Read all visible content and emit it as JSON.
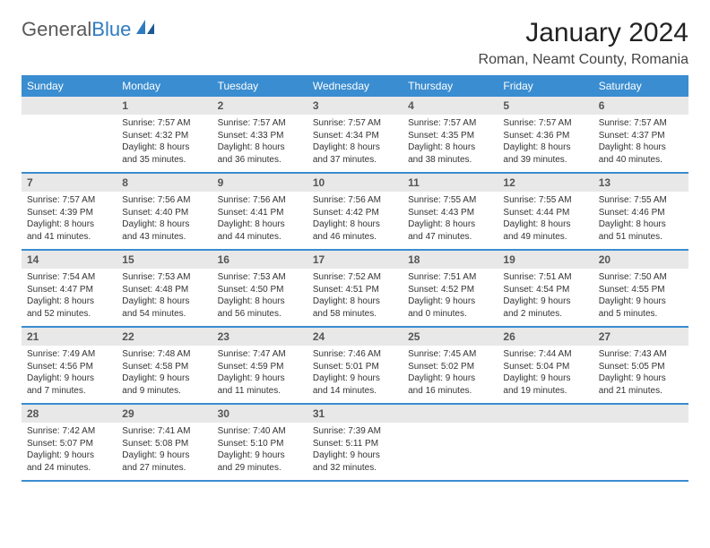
{
  "logo": {
    "text1": "General",
    "text2": "Blue"
  },
  "title": "January 2024",
  "location": "Roman, Neamt County, Romania",
  "colors": {
    "header_bg": "#3a8dd0",
    "header_text": "#ffffff",
    "daynum_bg": "#e8e8e8",
    "row_border": "#3a8dd0",
    "logo_gray": "#5a5a5a",
    "logo_blue": "#2f7bbf"
  },
  "weekdays": [
    "Sunday",
    "Monday",
    "Tuesday",
    "Wednesday",
    "Thursday",
    "Friday",
    "Saturday"
  ],
  "weeks": [
    [
      null,
      {
        "n": "1",
        "sr": "Sunrise: 7:57 AM",
        "ss": "Sunset: 4:32 PM",
        "dl": "Daylight: 8 hours and 35 minutes."
      },
      {
        "n": "2",
        "sr": "Sunrise: 7:57 AM",
        "ss": "Sunset: 4:33 PM",
        "dl": "Daylight: 8 hours and 36 minutes."
      },
      {
        "n": "3",
        "sr": "Sunrise: 7:57 AM",
        "ss": "Sunset: 4:34 PM",
        "dl": "Daylight: 8 hours and 37 minutes."
      },
      {
        "n": "4",
        "sr": "Sunrise: 7:57 AM",
        "ss": "Sunset: 4:35 PM",
        "dl": "Daylight: 8 hours and 38 minutes."
      },
      {
        "n": "5",
        "sr": "Sunrise: 7:57 AM",
        "ss": "Sunset: 4:36 PM",
        "dl": "Daylight: 8 hours and 39 minutes."
      },
      {
        "n": "6",
        "sr": "Sunrise: 7:57 AM",
        "ss": "Sunset: 4:37 PM",
        "dl": "Daylight: 8 hours and 40 minutes."
      }
    ],
    [
      {
        "n": "7",
        "sr": "Sunrise: 7:57 AM",
        "ss": "Sunset: 4:39 PM",
        "dl": "Daylight: 8 hours and 41 minutes."
      },
      {
        "n": "8",
        "sr": "Sunrise: 7:56 AM",
        "ss": "Sunset: 4:40 PM",
        "dl": "Daylight: 8 hours and 43 minutes."
      },
      {
        "n": "9",
        "sr": "Sunrise: 7:56 AM",
        "ss": "Sunset: 4:41 PM",
        "dl": "Daylight: 8 hours and 44 minutes."
      },
      {
        "n": "10",
        "sr": "Sunrise: 7:56 AM",
        "ss": "Sunset: 4:42 PM",
        "dl": "Daylight: 8 hours and 46 minutes."
      },
      {
        "n": "11",
        "sr": "Sunrise: 7:55 AM",
        "ss": "Sunset: 4:43 PM",
        "dl": "Daylight: 8 hours and 47 minutes."
      },
      {
        "n": "12",
        "sr": "Sunrise: 7:55 AM",
        "ss": "Sunset: 4:44 PM",
        "dl": "Daylight: 8 hours and 49 minutes."
      },
      {
        "n": "13",
        "sr": "Sunrise: 7:55 AM",
        "ss": "Sunset: 4:46 PM",
        "dl": "Daylight: 8 hours and 51 minutes."
      }
    ],
    [
      {
        "n": "14",
        "sr": "Sunrise: 7:54 AM",
        "ss": "Sunset: 4:47 PM",
        "dl": "Daylight: 8 hours and 52 minutes."
      },
      {
        "n": "15",
        "sr": "Sunrise: 7:53 AM",
        "ss": "Sunset: 4:48 PM",
        "dl": "Daylight: 8 hours and 54 minutes."
      },
      {
        "n": "16",
        "sr": "Sunrise: 7:53 AM",
        "ss": "Sunset: 4:50 PM",
        "dl": "Daylight: 8 hours and 56 minutes."
      },
      {
        "n": "17",
        "sr": "Sunrise: 7:52 AM",
        "ss": "Sunset: 4:51 PM",
        "dl": "Daylight: 8 hours and 58 minutes."
      },
      {
        "n": "18",
        "sr": "Sunrise: 7:51 AM",
        "ss": "Sunset: 4:52 PM",
        "dl": "Daylight: 9 hours and 0 minutes."
      },
      {
        "n": "19",
        "sr": "Sunrise: 7:51 AM",
        "ss": "Sunset: 4:54 PM",
        "dl": "Daylight: 9 hours and 2 minutes."
      },
      {
        "n": "20",
        "sr": "Sunrise: 7:50 AM",
        "ss": "Sunset: 4:55 PM",
        "dl": "Daylight: 9 hours and 5 minutes."
      }
    ],
    [
      {
        "n": "21",
        "sr": "Sunrise: 7:49 AM",
        "ss": "Sunset: 4:56 PM",
        "dl": "Daylight: 9 hours and 7 minutes."
      },
      {
        "n": "22",
        "sr": "Sunrise: 7:48 AM",
        "ss": "Sunset: 4:58 PM",
        "dl": "Daylight: 9 hours and 9 minutes."
      },
      {
        "n": "23",
        "sr": "Sunrise: 7:47 AM",
        "ss": "Sunset: 4:59 PM",
        "dl": "Daylight: 9 hours and 11 minutes."
      },
      {
        "n": "24",
        "sr": "Sunrise: 7:46 AM",
        "ss": "Sunset: 5:01 PM",
        "dl": "Daylight: 9 hours and 14 minutes."
      },
      {
        "n": "25",
        "sr": "Sunrise: 7:45 AM",
        "ss": "Sunset: 5:02 PM",
        "dl": "Daylight: 9 hours and 16 minutes."
      },
      {
        "n": "26",
        "sr": "Sunrise: 7:44 AM",
        "ss": "Sunset: 5:04 PM",
        "dl": "Daylight: 9 hours and 19 minutes."
      },
      {
        "n": "27",
        "sr": "Sunrise: 7:43 AM",
        "ss": "Sunset: 5:05 PM",
        "dl": "Daylight: 9 hours and 21 minutes."
      }
    ],
    [
      {
        "n": "28",
        "sr": "Sunrise: 7:42 AM",
        "ss": "Sunset: 5:07 PM",
        "dl": "Daylight: 9 hours and 24 minutes."
      },
      {
        "n": "29",
        "sr": "Sunrise: 7:41 AM",
        "ss": "Sunset: 5:08 PM",
        "dl": "Daylight: 9 hours and 27 minutes."
      },
      {
        "n": "30",
        "sr": "Sunrise: 7:40 AM",
        "ss": "Sunset: 5:10 PM",
        "dl": "Daylight: 9 hours and 29 minutes."
      },
      {
        "n": "31",
        "sr": "Sunrise: 7:39 AM",
        "ss": "Sunset: 5:11 PM",
        "dl": "Daylight: 9 hours and 32 minutes."
      },
      null,
      null,
      null
    ]
  ]
}
